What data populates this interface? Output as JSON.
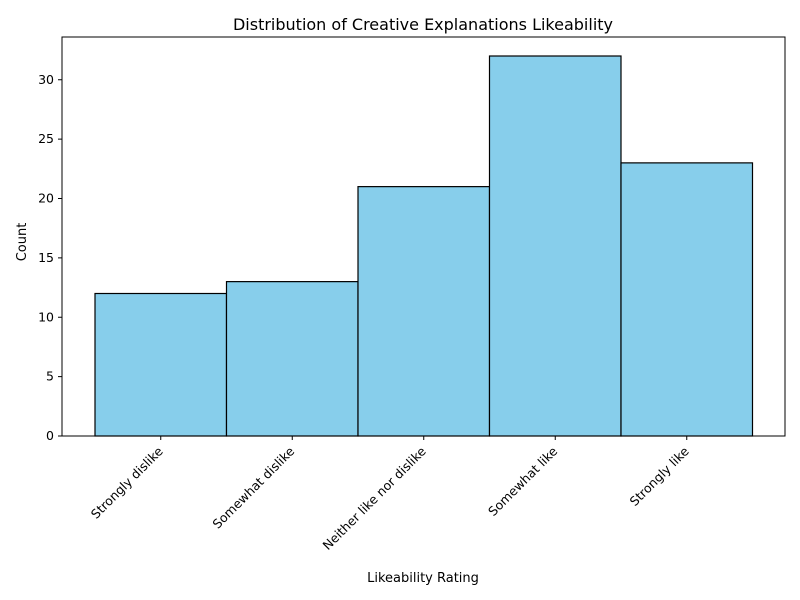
{
  "chart_data": {
    "type": "bar",
    "title": "Distribution of Creative Explanations Likeability",
    "xlabel": "Likeability Rating",
    "ylabel": "Count",
    "categories": [
      "Strongly dislike",
      "Somewhat dislike",
      "Neither like nor dislike",
      "Somewhat like",
      "Strongly like"
    ],
    "values": [
      12,
      13,
      21,
      32,
      23
    ],
    "ylim": [
      0,
      33.6
    ],
    "yticks": [
      0,
      5,
      10,
      15,
      20,
      25,
      30
    ],
    "grid": false,
    "legend": "none",
    "colors": {
      "bar_fill": "#87ceeb",
      "bar_edge": "#000000",
      "axis": "#000000",
      "text": "#000000"
    }
  }
}
